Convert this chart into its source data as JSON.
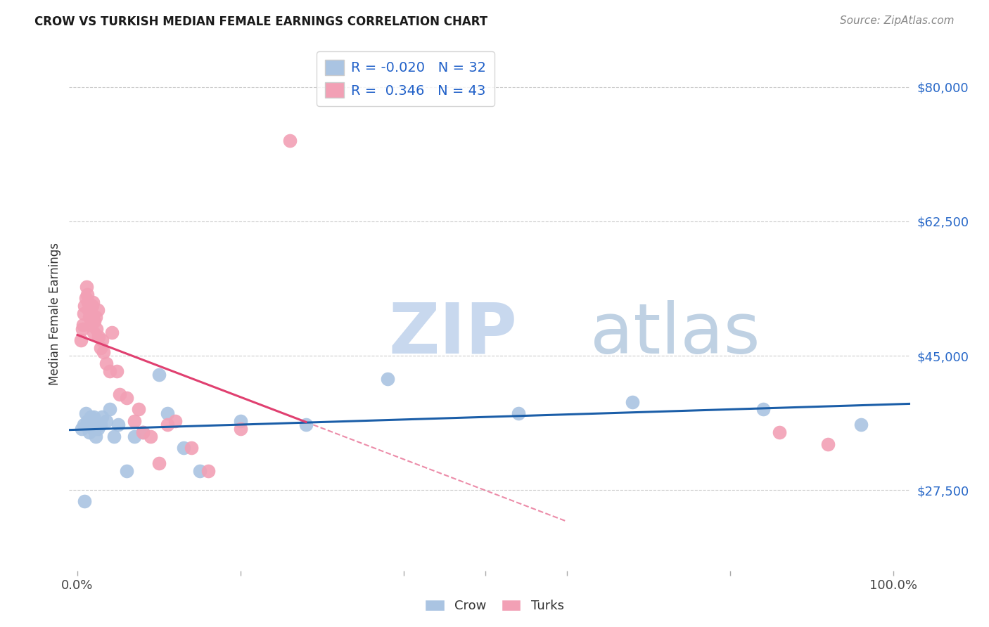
{
  "title": "CROW VS TURKISH MEDIAN FEMALE EARNINGS CORRELATION CHART",
  "source": "Source: ZipAtlas.com",
  "ylabel": "Median Female Earnings",
  "ytick_values": [
    27500,
    45000,
    62500,
    80000
  ],
  "ymin": 17000,
  "ymax": 84000,
  "xmin": -0.01,
  "xmax": 1.02,
  "crow_color": "#aac4e2",
  "turks_color": "#f2a0b5",
  "crow_line_color": "#1b5ea8",
  "turks_line_color": "#e04070",
  "crow_R": -0.02,
  "crow_N": 32,
  "turks_R": 0.346,
  "turks_N": 43,
  "crow_x": [
    0.005,
    0.008,
    0.009,
    0.01,
    0.012,
    0.015,
    0.016,
    0.018,
    0.019,
    0.02,
    0.022,
    0.025,
    0.028,
    0.03,
    0.035,
    0.04,
    0.045,
    0.05,
    0.06,
    0.07,
    0.08,
    0.1,
    0.11,
    0.13,
    0.15,
    0.2,
    0.28,
    0.38,
    0.54,
    0.68,
    0.84,
    0.96
  ],
  "crow_y": [
    35500,
    36000,
    26000,
    37500,
    36500,
    35000,
    37000,
    36500,
    35500,
    37000,
    34500,
    35500,
    36000,
    37000,
    36500,
    38000,
    34500,
    36000,
    30000,
    34500,
    35000,
    42500,
    37500,
    33000,
    30000,
    36500,
    36000,
    42000,
    37500,
    39000,
    38000,
    36000
  ],
  "turks_x": [
    0.004,
    0.006,
    0.007,
    0.008,
    0.009,
    0.01,
    0.011,
    0.012,
    0.013,
    0.014,
    0.015,
    0.016,
    0.017,
    0.018,
    0.019,
    0.02,
    0.021,
    0.022,
    0.023,
    0.025,
    0.026,
    0.028,
    0.03,
    0.032,
    0.035,
    0.04,
    0.042,
    0.048,
    0.052,
    0.06,
    0.07,
    0.075,
    0.08,
    0.09,
    0.1,
    0.11,
    0.12,
    0.14,
    0.16,
    0.2,
    0.26,
    0.86,
    0.92
  ],
  "turks_y": [
    47000,
    48500,
    49000,
    50500,
    51500,
    52500,
    54000,
    53000,
    52000,
    51000,
    50000,
    49000,
    50500,
    51500,
    52000,
    48000,
    49500,
    50000,
    48500,
    51000,
    47500,
    46000,
    47000,
    45500,
    44000,
    43000,
    48000,
    43000,
    40000,
    39500,
    36500,
    38000,
    35000,
    34500,
    31000,
    36000,
    36500,
    33000,
    30000,
    35500,
    73000,
    35000,
    33500
  ],
  "turks_outlier_x": [
    0.26
  ],
  "turks_outlier_y": [
    73000
  ]
}
